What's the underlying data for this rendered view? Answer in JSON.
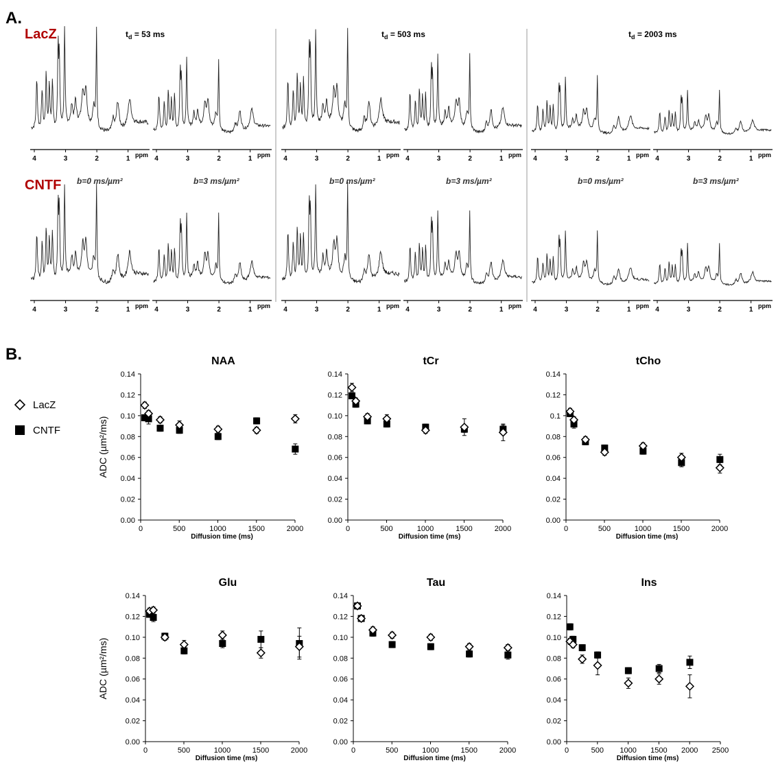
{
  "panel_a": {
    "letter": "A.",
    "groups": [
      "LacZ",
      "CNTF"
    ],
    "td_labels": [
      {
        "prefix": "t",
        "sub": "d",
        "rest": " = 53 ms"
      },
      {
        "prefix": "t",
        "sub": "d",
        "rest": " = 503 ms"
      },
      {
        "prefix": "t",
        "sub": "d",
        "rest": " = 2003 ms"
      }
    ],
    "b_labels": [
      "b=0 ms/µm²",
      "b=3 ms/µm²"
    ],
    "ppm_ticks": [
      "4",
      "3",
      "2",
      "1"
    ],
    "ppm_unit": "ppm"
  },
  "panel_b": {
    "letter": "B.",
    "legend": [
      {
        "label": "LacZ",
        "marker": "open-diamond"
      },
      {
        "label": "CNTF",
        "marker": "filled-square"
      }
    ],
    "ylabel": "ADC (µm²/ms)",
    "xlabel": "Diffusion time (ms)"
  },
  "chart_data": [
    {
      "type": "scatter",
      "title": "NAA",
      "xlabel": "Diffusion time (ms)",
      "ylabel": "ADC (µm²/ms)",
      "xlim": [
        0,
        2000
      ],
      "xticks": [
        0,
        500,
        1000,
        1500,
        2000
      ],
      "ylim": [
        0,
        0.14
      ],
      "yticks": [
        "0.00",
        "0.02",
        "0.04",
        "0.06",
        "0.08",
        "0.10",
        "0.12",
        "0.14"
      ],
      "series": [
        {
          "name": "LacZ",
          "x": [
            53,
            103,
            253,
            503,
            1003,
            1503,
            2003
          ],
          "y": [
            0.11,
            0.102,
            0.096,
            0.091,
            0.087,
            0.086,
            0.097
          ],
          "err": [
            0.003,
            0.003,
            0.003,
            0.004,
            0.003,
            0.003,
            0.004
          ]
        },
        {
          "name": "CNTF",
          "x": [
            53,
            103,
            253,
            503,
            1003,
            1503,
            2003
          ],
          "y": [
            0.098,
            0.097,
            0.088,
            0.086,
            0.08,
            0.095,
            0.068
          ],
          "err": [
            0.003,
            0.005,
            0.003,
            0.003,
            0.003,
            0.003,
            0.005
          ]
        }
      ]
    },
    {
      "type": "scatter",
      "title": "tCr",
      "xlabel": "Diffusion time (ms)",
      "ylabel": "ADC (µm²/ms)",
      "xlim": [
        0,
        2000
      ],
      "xticks": [
        0,
        500,
        1000,
        1500,
        2000
      ],
      "ylim": [
        0,
        0.14
      ],
      "yticks": [
        "0.00",
        "0.02",
        "0.04",
        "0.06",
        "0.08",
        "0.10",
        "0.12",
        "0.14"
      ],
      "series": [
        {
          "name": "LacZ",
          "x": [
            53,
            103,
            253,
            503,
            1003,
            1503,
            2003
          ],
          "y": [
            0.127,
            0.114,
            0.099,
            0.097,
            0.086,
            0.089,
            0.084
          ],
          "err": [
            0.004,
            0.003,
            0.003,
            0.004,
            0.003,
            0.008,
            0.008
          ]
        },
        {
          "name": "CNTF",
          "x": [
            53,
            103,
            253,
            503,
            1003,
            1503,
            2003
          ],
          "y": [
            0.119,
            0.111,
            0.095,
            0.092,
            0.089,
            0.087,
            0.087
          ],
          "err": [
            0.003,
            0.003,
            0.003,
            0.003,
            0.003,
            0.003,
            0.004
          ]
        }
      ]
    },
    {
      "type": "scatter",
      "title": "tCho",
      "xlabel": "Diffusion time (ms)",
      "ylabel": "ADC (µm²/ms)",
      "xlim": [
        0,
        2000
      ],
      "xticks": [
        0,
        500,
        1000,
        1500,
        2000
      ],
      "ylim": [
        0,
        0.14
      ],
      "yticks": [
        "0.00",
        "0.02",
        "0.04",
        "0.06",
        "0.08",
        "0.1",
        "0.12",
        "0.14"
      ],
      "series": [
        {
          "name": "LacZ",
          "x": [
            53,
            103,
            253,
            503,
            1003,
            1503,
            2003
          ],
          "y": [
            0.104,
            0.096,
            0.077,
            0.065,
            0.071,
            0.06,
            0.05
          ],
          "err": [
            0.003,
            0.003,
            0.003,
            0.003,
            0.003,
            0.004,
            0.005
          ]
        },
        {
          "name": "CNTF",
          "x": [
            53,
            103,
            253,
            503,
            1003,
            1503,
            2003
          ],
          "y": [
            0.102,
            0.092,
            0.075,
            0.069,
            0.066,
            0.055,
            0.058
          ],
          "err": [
            0.003,
            0.004,
            0.003,
            0.003,
            0.003,
            0.004,
            0.005
          ]
        }
      ]
    },
    {
      "type": "scatter",
      "title": "Glu",
      "xlabel": "Diffusion time (ms)",
      "ylabel": "ADC (µm²/ms)",
      "xlim": [
        0,
        2000
      ],
      "xticks": [
        0,
        500,
        1000,
        1500,
        2000
      ],
      "ylim": [
        0,
        0.14
      ],
      "yticks": [
        "0.00",
        "0.02",
        "0.04",
        "0.06",
        "0.08",
        "0.10",
        "0.12",
        "0.14"
      ],
      "series": [
        {
          "name": "LacZ",
          "x": [
            53,
            103,
            253,
            503,
            1003,
            1503,
            2003
          ],
          "y": [
            0.125,
            0.126,
            0.1,
            0.093,
            0.102,
            0.085,
            0.091
          ],
          "err": [
            0.003,
            0.003,
            0.003,
            0.004,
            0.004,
            0.005,
            0.01
          ]
        },
        {
          "name": "CNTF",
          "x": [
            53,
            103,
            253,
            503,
            1003,
            1503,
            2003
          ],
          "y": [
            0.122,
            0.119,
            0.101,
            0.087,
            0.094,
            0.098,
            0.094
          ],
          "err": [
            0.003,
            0.004,
            0.003,
            0.003,
            0.004,
            0.008,
            0.015
          ]
        }
      ]
    },
    {
      "type": "scatter",
      "title": "Tau",
      "xlabel": "Diffusion time (ms)",
      "ylabel": "ADC (µm²/ms)",
      "xlim": [
        0,
        2000
      ],
      "xticks": [
        0,
        500,
        1000,
        1500,
        2000
      ],
      "ylim": [
        0,
        0.14
      ],
      "yticks": [
        "0.00",
        "0.02",
        "0.04",
        "0.06",
        "0.08",
        "0.10",
        "0.12",
        "0.14"
      ],
      "series": [
        {
          "name": "LacZ",
          "x": [
            53,
            103,
            253,
            503,
            1003,
            1503,
            2003
          ],
          "y": [
            0.13,
            0.118,
            0.107,
            0.102,
            0.1,
            0.091,
            0.09
          ],
          "err": [
            0.003,
            0.003,
            0.003,
            0.003,
            0.003,
            0.003,
            0.003
          ]
        },
        {
          "name": "CNTF",
          "x": [
            53,
            103,
            253,
            503,
            1003,
            1503,
            2003
          ],
          "y": [
            0.13,
            0.118,
            0.104,
            0.093,
            0.091,
            0.084,
            0.083
          ],
          "err": [
            0.003,
            0.003,
            0.003,
            0.003,
            0.003,
            0.003,
            0.004
          ]
        }
      ]
    },
    {
      "type": "scatter",
      "title": "Ins",
      "xlabel": "Diffusion time (ms)",
      "ylabel": "ADC (µm²/ms)",
      "xlim": [
        0,
        2500
      ],
      "xticks": [
        0,
        500,
        1000,
        1500,
        2000,
        2500
      ],
      "ylim": [
        0,
        0.14
      ],
      "yticks": [
        "0.00",
        "0.02",
        "0.04",
        "0.06",
        "0.08",
        "0.10",
        "0.12",
        "0.14"
      ],
      "series": [
        {
          "name": "LacZ",
          "x": [
            53,
            103,
            253,
            503,
            1003,
            1503,
            2003
          ],
          "y": [
            0.096,
            0.093,
            0.079,
            0.073,
            0.056,
            0.06,
            0.053
          ],
          "err": [
            0.003,
            0.003,
            0.004,
            0.009,
            0.005,
            0.005,
            0.011
          ]
        },
        {
          "name": "CNTF",
          "x": [
            53,
            103,
            253,
            503,
            1003,
            1503,
            2003
          ],
          "y": [
            0.11,
            0.098,
            0.09,
            0.083,
            0.068,
            0.07,
            0.076
          ],
          "err": [
            0.003,
            0.003,
            0.003,
            0.003,
            0.003,
            0.004,
            0.006
          ]
        }
      ]
    }
  ]
}
